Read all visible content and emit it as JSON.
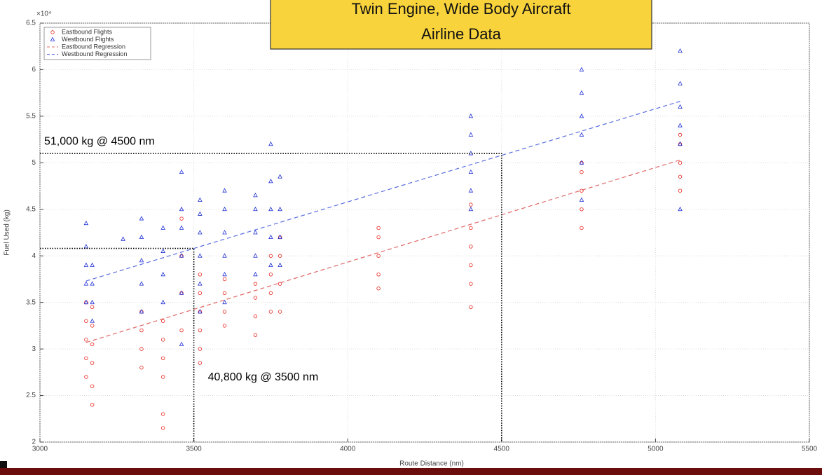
{
  "chart_data": {
    "type": "scatter",
    "title": [
      "Twin Engine, Wide Body Aircraft",
      "Airline Data"
    ],
    "x_label": "Route Distance (nm)",
    "y_label": "Fuel Used (kg)",
    "y_multiplier": "×10⁴",
    "xlim": [
      3000,
      5500
    ],
    "xticks": [
      3000,
      3500,
      4000,
      4500,
      5000,
      5500
    ],
    "ylim": [
      20000,
      65000
    ],
    "yticks": [
      {
        "value": 20000,
        "label": "2"
      },
      {
        "value": 25000,
        "label": "2.5"
      },
      {
        "value": 30000,
        "label": "3"
      },
      {
        "value": 35000,
        "label": "3.5"
      },
      {
        "value": 40000,
        "label": "4"
      },
      {
        "value": 45000,
        "label": "4.5"
      },
      {
        "value": 50000,
        "label": "5"
      },
      {
        "value": 55000,
        "label": "5.5"
      },
      {
        "value": 60000,
        "label": "6"
      },
      {
        "value": 65000,
        "label": "6.5"
      }
    ],
    "grid": true,
    "legend": "top-left",
    "series": [
      {
        "name": "Eastbound Flights",
        "color": "#e8241c",
        "marker": "circle",
        "x": [
          3150,
          3150,
          3150,
          3150,
          3150,
          3170,
          3170,
          3170,
          3170,
          3170,
          3170,
          3330,
          3330,
          3330,
          3330,
          3400,
          3400,
          3400,
          3400,
          3400,
          3400,
          3460,
          3460,
          3460,
          3460,
          3520,
          3520,
          3520,
          3520,
          3520,
          3520,
          3600,
          3600,
          3600,
          3600,
          3700,
          3700,
          3700,
          3700,
          3750,
          3750,
          3750,
          3750,
          3780,
          3780,
          3780,
          3780,
          4100,
          4100,
          4100,
          4100,
          4100,
          4400,
          4400,
          4400,
          4400,
          4400,
          4400,
          4760,
          4760,
          4760,
          4760,
          4760,
          5080,
          5080,
          5080,
          5080,
          5080
        ],
        "values": [
          27000,
          29000,
          31000,
          33000,
          35000,
          24000,
          26000,
          28500,
          30500,
          32500,
          34500,
          28000,
          30000,
          32000,
          34000,
          21500,
          23000,
          27000,
          29000,
          31000,
          33000,
          32000,
          36000,
          40000,
          44000,
          28500,
          30000,
          32000,
          34000,
          36000,
          38000,
          32500,
          34000,
          36000,
          37500,
          31500,
          33500,
          35500,
          37000,
          34000,
          36000,
          38000,
          40000,
          34000,
          37000,
          40000,
          42000,
          36500,
          38000,
          40000,
          42000,
          43000,
          34500,
          37000,
          39000,
          41000,
          43000,
          45500,
          43000,
          45000,
          47000,
          49000,
          50000,
          47000,
          48500,
          50000,
          52000,
          53000
        ]
      },
      {
        "name": "Westbound Flights",
        "color": "#1f2fd6",
        "marker": "triangle",
        "x": [
          3150,
          3150,
          3150,
          3150,
          3150,
          3170,
          3170,
          3170,
          3170,
          3270,
          3330,
          3330,
          3330,
          3330,
          3330,
          3400,
          3400,
          3400,
          3400,
          3460,
          3460,
          3460,
          3460,
          3460,
          3460,
          3520,
          3520,
          3520,
          3520,
          3520,
          3520,
          3600,
          3600,
          3600,
          3600,
          3600,
          3600,
          3700,
          3700,
          3700,
          3700,
          3700,
          3750,
          3750,
          3750,
          3750,
          3750,
          3780,
          3780,
          3780,
          3780,
          4400,
          4400,
          4400,
          4400,
          4400,
          4400,
          4760,
          4760,
          4760,
          4760,
          4760,
          4760,
          5080,
          5080,
          5080,
          5080,
          5080,
          5080
        ],
        "values": [
          35000,
          37000,
          39000,
          41000,
          43500,
          33000,
          35000,
          37000,
          39000,
          41800,
          34000,
          37000,
          39500,
          42000,
          44000,
          35000,
          38000,
          40500,
          43000,
          30500,
          36000,
          40000,
          43000,
          45000,
          49000,
          34000,
          37000,
          40000,
          42500,
          44500,
          46000,
          35000,
          38000,
          40000,
          42500,
          45000,
          47000,
          38000,
          40000,
          42500,
          45000,
          46500,
          39000,
          42000,
          45000,
          48000,
          52000,
          39000,
          42000,
          45000,
          48500,
          45000,
          47000,
          49000,
          51000,
          53000,
          55000,
          46000,
          50000,
          53000,
          55000,
          57500,
          60000,
          45000,
          52000,
          54000,
          56000,
          58500,
          62000
        ]
      },
      {
        "name": "Eastbound Regression",
        "color": "#e06a6a",
        "line": "dashed",
        "x": [
          3150,
          5080
        ],
        "values": [
          30700,
          50300
        ]
      },
      {
        "name": "Westbound Regression",
        "color": "#5a6ee0",
        "line": "dashed",
        "x": [
          3150,
          5080
        ],
        "values": [
          37300,
          56600
        ]
      }
    ],
    "annotations": [
      {
        "text": "51,000 kg @ 4500 nm",
        "x": 4500,
        "y": 51000
      },
      {
        "text": "40,800 kg @ 3500 nm",
        "x": 3500,
        "y": 40800
      }
    ]
  }
}
